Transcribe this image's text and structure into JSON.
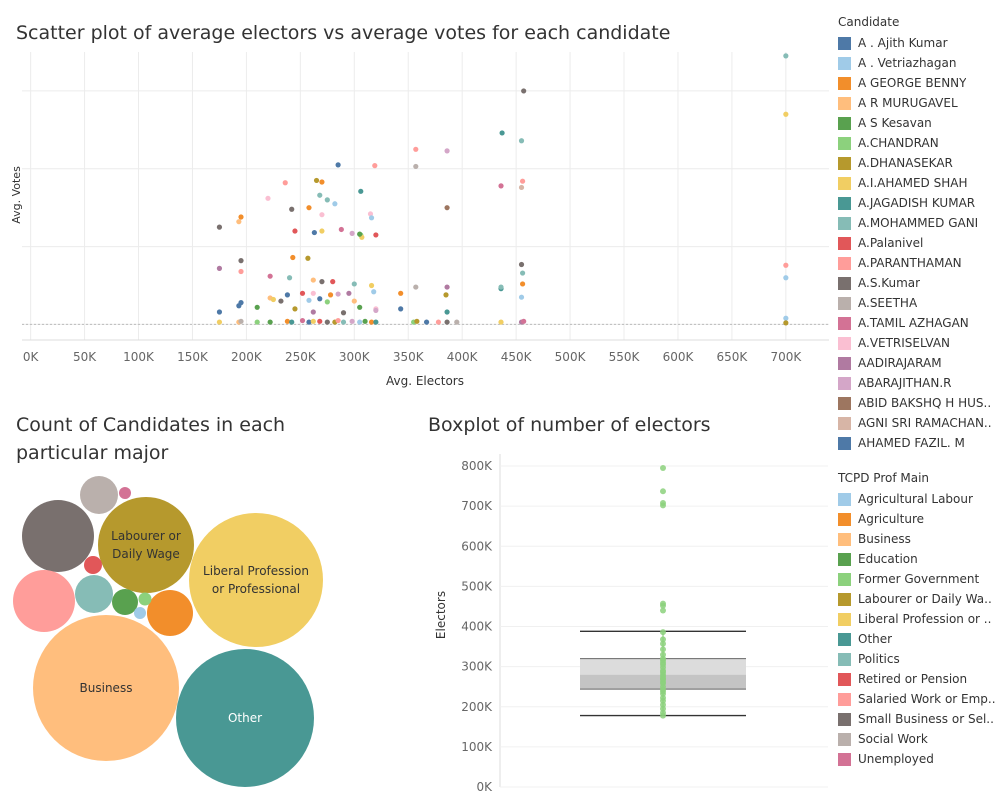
{
  "titles": {
    "scatter": "Scatter plot of average electors vs average votes for each candidate",
    "bubble": "Count of Candidates in each particular major",
    "boxplot": "Boxplot of number of electors"
  },
  "legend_candidate": {
    "title": "Candidate",
    "items": [
      {
        "label": "A . Ajith Kumar",
        "color": "#4e79a7"
      },
      {
        "label": "A . Vetriazhagan",
        "color": "#a0cbe8"
      },
      {
        "label": "A GEORGE BENNY",
        "color": "#f28e2b"
      },
      {
        "label": "A R MURUGAVEL",
        "color": "#ffbe7d"
      },
      {
        "label": "A S Kesavan",
        "color": "#59a14f"
      },
      {
        "label": "A.CHANDRAN",
        "color": "#8cd17d"
      },
      {
        "label": "A.DHANASEKAR",
        "color": "#b6992d"
      },
      {
        "label": "A.I.AHAMED SHAH",
        "color": "#f1ce63"
      },
      {
        "label": "A.JAGADISH KUMAR",
        "color": "#499894"
      },
      {
        "label": "A.MOHAMMED GANI",
        "color": "#86bcb6"
      },
      {
        "label": "A.Palanivel",
        "color": "#e15759"
      },
      {
        "label": "A.PARANTHAMAN",
        "color": "#ff9d9a"
      },
      {
        "label": "A.S.Kumar",
        "color": "#79706e"
      },
      {
        "label": "A.SEETHA",
        "color": "#bab0ac"
      },
      {
        "label": "A.TAMIL AZHAGAN",
        "color": "#d37295"
      },
      {
        "label": "A.VETRISELVAN",
        "color": "#fabfd2"
      },
      {
        "label": "AADIRAJARAM",
        "color": "#b07aa1"
      },
      {
        "label": "ABARAJITHAN.R",
        "color": "#d4a6c8"
      },
      {
        "label": "ABID BAKSHQ H HUS..",
        "color": "#9d7660"
      },
      {
        "label": "AGNI SRI RAMACHAN..",
        "color": "#d7b5a6"
      },
      {
        "label": "AHAMED FAZIL. M",
        "color": "#4e79a7"
      }
    ]
  },
  "legend_profession": {
    "title": "TCPD Prof Main",
    "items": [
      {
        "label": "Agricultural Labour",
        "color": "#a0cbe8"
      },
      {
        "label": "Agriculture",
        "color": "#f28e2b"
      },
      {
        "label": "Business",
        "color": "#ffbe7d"
      },
      {
        "label": "Education",
        "color": "#59a14f"
      },
      {
        "label": "Former Government",
        "color": "#8cd17d"
      },
      {
        "label": "Labourer or Daily Wa..",
        "color": "#b6992d"
      },
      {
        "label": "Liberal Profession or ..",
        "color": "#f1ce63"
      },
      {
        "label": "Other",
        "color": "#499894"
      },
      {
        "label": "Politics",
        "color": "#86bcb6"
      },
      {
        "label": "Retired or Pension",
        "color": "#e15759"
      },
      {
        "label": "Salaried Work or Emp..",
        "color": "#ff9d9a"
      },
      {
        "label": "Small Business or Sel..",
        "color": "#79706e"
      },
      {
        "label": "Social Work",
        "color": "#bab0ac"
      },
      {
        "label": "Unemployed",
        "color": "#d37295"
      }
    ]
  },
  "chart_data": [
    {
      "type": "scatter",
      "title": "Scatter plot of average electors vs average votes for each candidate",
      "xlabel": "Avg. Electors",
      "ylabel": "Avg. Votes",
      "xlim": [
        -8000,
        740000
      ],
      "ylim": [
        -20000,
        350000
      ],
      "xticks": [
        0,
        50000,
        100000,
        150000,
        200000,
        250000,
        300000,
        350000,
        400000,
        450000,
        500000,
        550000,
        600000,
        650000,
        700000
      ],
      "xtick_labels": [
        "0K",
        "50K",
        "100K",
        "150K",
        "200K",
        "250K",
        "300K",
        "350K",
        "400K",
        "450K",
        "500K",
        "550K",
        "600K",
        "650K",
        "700K"
      ],
      "points": [
        {
          "x": 700000,
          "y": 345000,
          "color": "#86bcb6"
        },
        {
          "x": 700000,
          "y": 270000,
          "color": "#f1ce63"
        },
        {
          "x": 700000,
          "y": 76000,
          "color": "#ff9d9a"
        },
        {
          "x": 700000,
          "y": 60000,
          "color": "#a0cbe8"
        },
        {
          "x": 700000,
          "y": 8000,
          "color": "#a0cbe8"
        },
        {
          "x": 700000,
          "y": 2000,
          "color": "#b6992d"
        },
        {
          "x": 457000,
          "y": 300000,
          "color": "#79706e"
        },
        {
          "x": 437000,
          "y": 246000,
          "color": "#499894"
        },
        {
          "x": 455000,
          "y": 236000,
          "color": "#86bcb6"
        },
        {
          "x": 456000,
          "y": 184000,
          "color": "#ff9d9a"
        },
        {
          "x": 436000,
          "y": 178000,
          "color": "#d37295"
        },
        {
          "x": 455000,
          "y": 176000,
          "color": "#d7b5a6"
        },
        {
          "x": 357000,
          "y": 225000,
          "color": "#ff9d9a"
        },
        {
          "x": 386000,
          "y": 223000,
          "color": "#d4a6c8"
        },
        {
          "x": 357000,
          "y": 203000,
          "color": "#bab0ac"
        },
        {
          "x": 319000,
          "y": 204000,
          "color": "#ff9d9a"
        },
        {
          "x": 285000,
          "y": 205000,
          "color": "#4e79a7"
        },
        {
          "x": 265000,
          "y": 185000,
          "color": "#b6992d"
        },
        {
          "x": 270000,
          "y": 183000,
          "color": "#f28e2b"
        },
        {
          "x": 236000,
          "y": 182000,
          "color": "#ff9d9a"
        },
        {
          "x": 306000,
          "y": 171000,
          "color": "#499894"
        },
        {
          "x": 268000,
          "y": 166000,
          "color": "#86bcb6"
        },
        {
          "x": 220000,
          "y": 162000,
          "color": "#fabfd2"
        },
        {
          "x": 275000,
          "y": 160000,
          "color": "#86bcb6"
        },
        {
          "x": 282000,
          "y": 155000,
          "color": "#a0cbe8"
        },
        {
          "x": 258000,
          "y": 150000,
          "color": "#f28e2b"
        },
        {
          "x": 242000,
          "y": 148000,
          "color": "#79706e"
        },
        {
          "x": 386000,
          "y": 150000,
          "color": "#9d7660"
        },
        {
          "x": 195000,
          "y": 138000,
          "color": "#f28e2b"
        },
        {
          "x": 270000,
          "y": 141000,
          "color": "#fabfd2"
        },
        {
          "x": 315000,
          "y": 142000,
          "color": "#fabfd2"
        },
        {
          "x": 193000,
          "y": 132000,
          "color": "#ffbe7d"
        },
        {
          "x": 316000,
          "y": 137000,
          "color": "#a0cbe8"
        },
        {
          "x": 175000,
          "y": 125000,
          "color": "#79706e"
        },
        {
          "x": 245000,
          "y": 120000,
          "color": "#e15759"
        },
        {
          "x": 263000,
          "y": 118000,
          "color": "#4e79a7"
        },
        {
          "x": 270000,
          "y": 120000,
          "color": "#f1ce63"
        },
        {
          "x": 298000,
          "y": 117000,
          "color": "#d4a6c8"
        },
        {
          "x": 288000,
          "y": 122000,
          "color": "#d37295"
        },
        {
          "x": 306000,
          "y": 115000,
          "color": "#8cd17d"
        },
        {
          "x": 307000,
          "y": 112000,
          "color": "#f1ce63"
        },
        {
          "x": 320000,
          "y": 115000,
          "color": "#e15759"
        },
        {
          "x": 305000,
          "y": 116000,
          "color": "#59a14f"
        },
        {
          "x": 195000,
          "y": 82000,
          "color": "#79706e"
        },
        {
          "x": 243000,
          "y": 86000,
          "color": "#f28e2b"
        },
        {
          "x": 257000,
          "y": 85000,
          "color": "#b6992d"
        },
        {
          "x": 175000,
          "y": 72000,
          "color": "#b07aa1"
        },
        {
          "x": 195000,
          "y": 68000,
          "color": "#ff9d9a"
        },
        {
          "x": 222000,
          "y": 62000,
          "color": "#d37295"
        },
        {
          "x": 240000,
          "y": 60000,
          "color": "#86bcb6"
        },
        {
          "x": 262000,
          "y": 57000,
          "color": "#ffbe7d"
        },
        {
          "x": 270000,
          "y": 55000,
          "color": "#79706e"
        },
        {
          "x": 280000,
          "y": 55000,
          "color": "#e15759"
        },
        {
          "x": 300000,
          "y": 52000,
          "color": "#86bcb6"
        },
        {
          "x": 316000,
          "y": 50000,
          "color": "#f1ce63"
        },
        {
          "x": 318000,
          "y": 42000,
          "color": "#a0cbe8"
        },
        {
          "x": 455000,
          "y": 77000,
          "color": "#79706e"
        },
        {
          "x": 456000,
          "y": 66000,
          "color": "#86bcb6"
        },
        {
          "x": 456000,
          "y": 52000,
          "color": "#f28e2b"
        },
        {
          "x": 455000,
          "y": 35000,
          "color": "#a0cbe8"
        },
        {
          "x": 436000,
          "y": 46000,
          "color": "#499894"
        },
        {
          "x": 436000,
          "y": 48000,
          "color": "#86bcb6"
        },
        {
          "x": 357000,
          "y": 48000,
          "color": "#bab0ac"
        },
        {
          "x": 386000,
          "y": 48000,
          "color": "#b07aa1"
        },
        {
          "x": 385000,
          "y": 38000,
          "color": "#b6992d"
        },
        {
          "x": 252000,
          "y": 40000,
          "color": "#e15759"
        },
        {
          "x": 262000,
          "y": 40000,
          "color": "#fabfd2"
        },
        {
          "x": 238000,
          "y": 38000,
          "color": "#4e79a7"
        },
        {
          "x": 278000,
          "y": 38000,
          "color": "#f28e2b"
        },
        {
          "x": 285000,
          "y": 39000,
          "color": "#d4a6c8"
        },
        {
          "x": 295000,
          "y": 40000,
          "color": "#b07aa1"
        },
        {
          "x": 343000,
          "y": 40000,
          "color": "#f28e2b"
        },
        {
          "x": 222000,
          "y": 34000,
          "color": "#ffbe7d"
        },
        {
          "x": 225000,
          "y": 32000,
          "color": "#f1ce63"
        },
        {
          "x": 232000,
          "y": 30000,
          "color": "#79706e"
        },
        {
          "x": 258000,
          "y": 31000,
          "color": "#a0cbe8"
        },
        {
          "x": 268000,
          "y": 33000,
          "color": "#4e79a7"
        },
        {
          "x": 275000,
          "y": 29000,
          "color": "#8cd17d"
        },
        {
          "x": 300000,
          "y": 30000,
          "color": "#ffbe7d"
        },
        {
          "x": 195000,
          "y": 28000,
          "color": "#4e79a7"
        },
        {
          "x": 175000,
          "y": 16000,
          "color": "#4e79a7"
        },
        {
          "x": 193000,
          "y": 24000,
          "color": "#4e79a7"
        },
        {
          "x": 210000,
          "y": 22000,
          "color": "#59a14f"
        },
        {
          "x": 245000,
          "y": 20000,
          "color": "#b6992d"
        },
        {
          "x": 305000,
          "y": 22000,
          "color": "#59a14f"
        },
        {
          "x": 320000,
          "y": 20000,
          "color": "#fabfd2"
        },
        {
          "x": 320000,
          "y": 18000,
          "color": "#d4a6c8"
        },
        {
          "x": 343000,
          "y": 20000,
          "color": "#4e79a7"
        },
        {
          "x": 386000,
          "y": 16000,
          "color": "#499894"
        },
        {
          "x": 290000,
          "y": 15000,
          "color": "#79706e"
        },
        {
          "x": 262000,
          "y": 16000,
          "color": "#b07aa1"
        },
        {
          "x": 175000,
          "y": 3000,
          "color": "#f1ce63"
        },
        {
          "x": 193000,
          "y": 3000,
          "color": "#ffbe7d"
        },
        {
          "x": 195000,
          "y": 4000,
          "color": "#bab0ac"
        },
        {
          "x": 210000,
          "y": 3000,
          "color": "#8cd17d"
        },
        {
          "x": 222000,
          "y": 3000,
          "color": "#59a14f"
        },
        {
          "x": 238000,
          "y": 4000,
          "color": "#f28e2b"
        },
        {
          "x": 242000,
          "y": 3000,
          "color": "#499894"
        },
        {
          "x": 252000,
          "y": 5000,
          "color": "#d37295"
        },
        {
          "x": 258000,
          "y": 3000,
          "color": "#4e79a7"
        },
        {
          "x": 262000,
          "y": 4000,
          "color": "#f1ce63"
        },
        {
          "x": 268000,
          "y": 4000,
          "color": "#e15759"
        },
        {
          "x": 275000,
          "y": 3000,
          "color": "#79706e"
        },
        {
          "x": 282000,
          "y": 3000,
          "color": "#b6992d"
        },
        {
          "x": 285000,
          "y": 5000,
          "color": "#ff9d9a"
        },
        {
          "x": 290000,
          "y": 3000,
          "color": "#86bcb6"
        },
        {
          "x": 298000,
          "y": 4000,
          "color": "#d4a6c8"
        },
        {
          "x": 305000,
          "y": 3000,
          "color": "#a0cbe8"
        },
        {
          "x": 310000,
          "y": 4000,
          "color": "#59a14f"
        },
        {
          "x": 316000,
          "y": 3000,
          "color": "#f28e2b"
        },
        {
          "x": 320000,
          "y": 3000,
          "color": "#499894"
        },
        {
          "x": 355000,
          "y": 3000,
          "color": "#8cd17d"
        },
        {
          "x": 358000,
          "y": 4000,
          "color": "#b6992d"
        },
        {
          "x": 367000,
          "y": 3000,
          "color": "#4e79a7"
        },
        {
          "x": 378000,
          "y": 3000,
          "color": "#ff9d9a"
        },
        {
          "x": 386000,
          "y": 3000,
          "color": "#79706e"
        },
        {
          "x": 395000,
          "y": 3000,
          "color": "#bab0ac"
        },
        {
          "x": 436000,
          "y": 3000,
          "color": "#f1ce63"
        },
        {
          "x": 455000,
          "y": 3000,
          "color": "#b07aa1"
        },
        {
          "x": 457000,
          "y": 4000,
          "color": "#d37295"
        }
      ]
    },
    {
      "type": "bubble",
      "title": "Count of Candidates in each particular major",
      "bubbles": [
        {
          "label": "Business",
          "show_label": true,
          "size": 146,
          "color": "#ffbe7d"
        },
        {
          "label": "Liberal Profession or Professional",
          "show_label": true,
          "size": 134,
          "color": "#f1ce63"
        },
        {
          "label": "Other",
          "show_label": true,
          "size": 138,
          "color": "#499894"
        },
        {
          "label": "Labourer or Daily Wage",
          "show_label": true,
          "size": 96,
          "color": "#b6992d"
        },
        {
          "label": "Small Business or Self Employed",
          "show_label": false,
          "size": 72,
          "color": "#79706e"
        },
        {
          "label": "Salaried Work or Employment",
          "show_label": false,
          "size": 62,
          "color": "#ff9d9a"
        },
        {
          "label": "Agriculture",
          "show_label": false,
          "size": 46,
          "color": "#f28e2b"
        },
        {
          "label": "Politics",
          "show_label": false,
          "size": 38,
          "color": "#86bcb6"
        },
        {
          "label": "Social Work",
          "show_label": false,
          "size": 38,
          "color": "#bab0ac"
        },
        {
          "label": "Education",
          "show_label": false,
          "size": 26,
          "color": "#59a14f"
        },
        {
          "label": "Retired or Pension",
          "show_label": false,
          "size": 18,
          "color": "#e15759"
        },
        {
          "label": "Former Government",
          "show_label": false,
          "size": 13,
          "color": "#8cd17d"
        },
        {
          "label": "Unemployed",
          "show_label": false,
          "size": 12,
          "color": "#d37295"
        },
        {
          "label": "Agricultural Labour",
          "show_label": false,
          "size": 12,
          "color": "#a0cbe8"
        }
      ]
    },
    {
      "type": "box",
      "title": "Boxplot of number of electors",
      "ylabel": "Electors",
      "ylim": [
        0,
        830000
      ],
      "yticks": [
        0,
        100000,
        200000,
        300000,
        400000,
        500000,
        600000,
        700000,
        800000
      ],
      "ytick_labels": [
        "0K",
        "100K",
        "200K",
        "300K",
        "400K",
        "500K",
        "600K",
        "700K",
        "800K"
      ],
      "box": {
        "whisker_low": 178000,
        "q1": 244000,
        "median": 280000,
        "q3": 320000,
        "whisker_high": 388000
      },
      "outliers": [
        795000,
        737000,
        708000,
        702000,
        457000,
        452000,
        440000
      ],
      "points": [
        178000,
        185000,
        195000,
        205000,
        215000,
        222000,
        232000,
        238000,
        243000,
        250000,
        258000,
        262000,
        268000,
        270000,
        275000,
        280000,
        286000,
        290000,
        298000,
        305000,
        310000,
        316000,
        320000,
        330000,
        343000,
        357000,
        368000,
        386000
      ]
    }
  ]
}
